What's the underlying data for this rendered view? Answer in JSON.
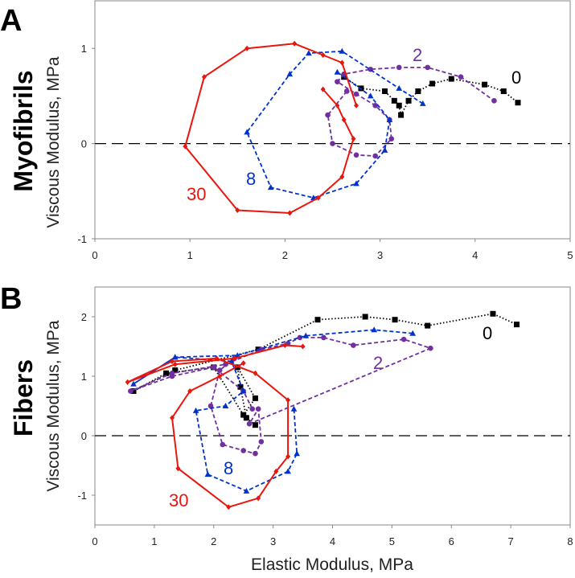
{
  "chart_data": [
    {
      "panel": "A",
      "type": "line",
      "row_title": "Myofibrils",
      "xlabel": "",
      "ylabel": "Viscous Modulus, MPa",
      "xlim": [
        0,
        5
      ],
      "ylim": [
        -1,
        1.5
      ],
      "xticks": [
        "0",
        "1",
        "2",
        "3",
        "4",
        "5"
      ],
      "yticks": [
        "-1",
        "0",
        "1"
      ],
      "zero_line": true,
      "series": [
        {
          "name": "0",
          "label": "0",
          "color": "#000000",
          "marker": "square",
          "dash": "dotted",
          "x": [
            2.62,
            2.8,
            3.05,
            3.15,
            3.2,
            3.22,
            3.3,
            3.4,
            3.55,
            3.75,
            4.1,
            4.3,
            4.45
          ],
          "y": [
            0.7,
            0.58,
            0.55,
            0.45,
            0.4,
            0.3,
            0.45,
            0.55,
            0.63,
            0.68,
            0.62,
            0.55,
            0.43
          ]
        },
        {
          "name": "2",
          "label": "2",
          "color": "#7030A0",
          "marker": "circle",
          "dash": "dashed",
          "x": [
            2.65,
            2.45,
            2.5,
            2.75,
            2.95,
            3.12,
            3.1,
            2.95,
            2.75,
            2.55,
            2.62,
            2.9,
            3.2,
            3.5,
            3.85,
            4.2
          ],
          "y": [
            0.55,
            0.3,
            0.0,
            -0.12,
            -0.13,
            0.05,
            0.25,
            0.4,
            0.52,
            0.65,
            0.73,
            0.78,
            0.8,
            0.8,
            0.7,
            0.45
          ]
        },
        {
          "name": "8",
          "label": "8",
          "color": "#0033CC",
          "marker": "triangle",
          "dash": "dashed",
          "x": [
            3.45,
            3.2,
            2.6,
            2.25,
            2.05,
            1.6,
            1.85,
            2.3,
            2.75,
            3.05,
            3.1,
            2.9,
            2.55
          ],
          "y": [
            0.42,
            0.58,
            0.97,
            0.95,
            0.73,
            0.12,
            -0.46,
            -0.57,
            -0.42,
            -0.07,
            0.25,
            0.5,
            0.75
          ]
        },
        {
          "name": "30",
          "label": "30",
          "color": "#E8160C",
          "marker": "diamond",
          "dash": "solid",
          "x": [
            2.75,
            2.6,
            2.4,
            2.1,
            1.6,
            1.15,
            0.95,
            1.5,
            2.05,
            2.35,
            2.6,
            2.72,
            2.62,
            2.55,
            2.4
          ],
          "y": [
            0.4,
            0.85,
            0.93,
            1.05,
            1.0,
            0.7,
            -0.03,
            -0.7,
            -0.73,
            -0.57,
            -0.35,
            0.05,
            0.25,
            0.4,
            0.57
          ]
        }
      ]
    },
    {
      "panel": "B",
      "type": "line",
      "row_title": "Fibers",
      "xlabel": "Elastic Modulus, MPa",
      "ylabel": "Viscous Modulus, MPa",
      "xlim": [
        0,
        8
      ],
      "ylim": [
        -1.5,
        2.5
      ],
      "xticks": [
        "0",
        "1",
        "2",
        "3",
        "4",
        "5",
        "6",
        "7",
        "8"
      ],
      "yticks": [
        "-1",
        "0",
        "1",
        "2"
      ],
      "zero_line": true,
      "series": [
        {
          "name": "0",
          "label": "0",
          "color": "#000000",
          "marker": "square",
          "dash": "dotted",
          "x": [
            2.7,
            2.55,
            2.45,
            2.4,
            2.7,
            2.5,
            2.0,
            1.2,
            0.65,
            1.35,
            2.75,
            3.75,
            4.55,
            5.05,
            5.6,
            6.7,
            7.1
          ],
          "y": [
            0.18,
            0.3,
            0.82,
            1.15,
            0.63,
            0.35,
            1.15,
            1.05,
            0.75,
            1.1,
            1.45,
            1.95,
            2.0,
            1.95,
            1.85,
            2.05,
            1.87
          ]
        },
        {
          "name": "2",
          "label": "2",
          "color": "#7030A0",
          "marker": "circle",
          "dash": "dashed",
          "x": [
            2.65,
            2.5,
            2.0,
            1.3,
            0.6,
            1.3,
            2.2,
            2.8,
            3.25,
            3.45,
            3.85,
            4.35,
            5.2,
            5.65,
            2.6,
            2.75,
            2.8,
            2.7,
            2.5,
            2.15,
            1.95,
            2.1,
            2.35
          ],
          "y": [
            0.45,
            0.75,
            1.15,
            1.0,
            0.75,
            1.05,
            1.2,
            1.45,
            1.55,
            1.65,
            1.65,
            1.52,
            1.62,
            1.47,
            0.2,
            0.45,
            -0.1,
            -0.3,
            -0.25,
            -0.15,
            0.5,
            1.1,
            1.3
          ]
        },
        {
          "name": "8",
          "label": "8",
          "color": "#0033CC",
          "marker": "triangle",
          "dash": "dashed",
          "x": [
            5.35,
            4.7,
            3.55,
            2.4,
            1.35,
            0.65,
            1.35,
            2.3,
            2.5,
            2.2,
            1.7,
            1.9,
            2.55,
            3.25,
            3.4,
            3.35
          ],
          "y": [
            1.72,
            1.78,
            1.68,
            1.35,
            1.32,
            0.87,
            1.32,
            1.25,
            0.75,
            0.5,
            0.42,
            -0.65,
            -0.93,
            -0.6,
            -0.3,
            0.45
          ]
        },
        {
          "name": "30",
          "label": "30",
          "color": "#E8160C",
          "marker": "diamond",
          "dash": "solid",
          "x": [
            3.5,
            3.2,
            2.35,
            1.35,
            0.55,
            1.3,
            2.05,
            2.7,
            3.25,
            3.25,
            3.05,
            2.75,
            2.25,
            1.4,
            1.3,
            1.6,
            2.1,
            2.5
          ],
          "y": [
            1.5,
            1.52,
            1.3,
            1.2,
            0.9,
            1.25,
            1.3,
            1.05,
            0.6,
            -0.35,
            -0.6,
            -1.05,
            -1.2,
            -0.55,
            0.3,
            0.75,
            1.0,
            1.22
          ]
        }
      ]
    }
  ]
}
